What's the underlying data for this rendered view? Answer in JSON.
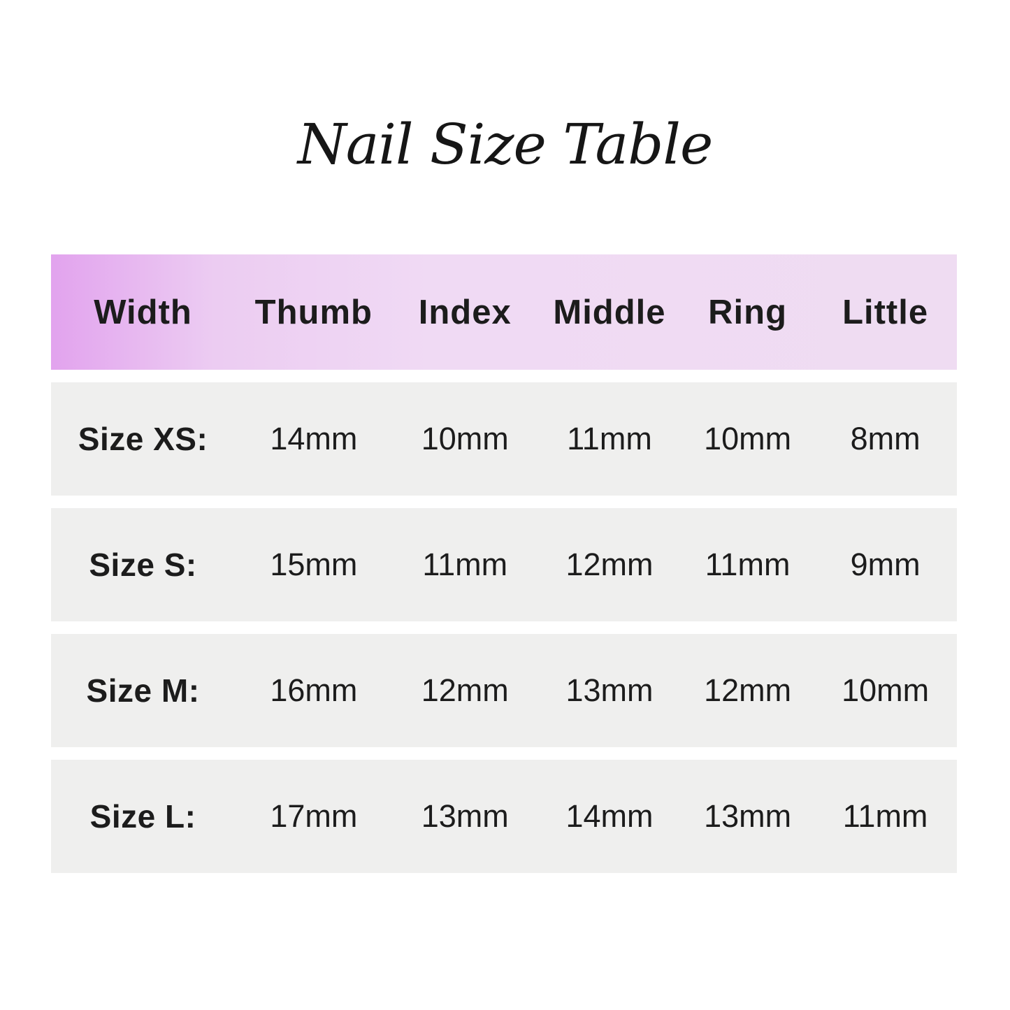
{
  "title": "Nail Size Table",
  "table": {
    "columns": [
      "Width",
      "Thumb",
      "Index",
      "Middle",
      "Ring",
      "Little"
    ],
    "rows": [
      {
        "label": "Size XS:",
        "values": [
          "14mm",
          "10mm",
          "11mm",
          "10mm",
          "8mm"
        ]
      },
      {
        "label": "Size S:",
        "values": [
          "15mm",
          "11mm",
          "12mm",
          "11mm",
          "9mm"
        ]
      },
      {
        "label": "Size M:",
        "values": [
          "16mm",
          "12mm",
          "13mm",
          "12mm",
          "10mm"
        ]
      },
      {
        "label": "Size L:",
        "values": [
          "17mm",
          "13mm",
          "14mm",
          "13mm",
          "11mm"
        ]
      }
    ]
  },
  "colors": {
    "background": "#ffffff",
    "header_gradient_start": "#e2a3ee",
    "header_gradient_end": "#efdcf2",
    "row_background": "#efefee",
    "text": "#1c1c1c"
  },
  "chart_data": {
    "type": "table",
    "title": "Nail Size Table",
    "columns": [
      "Width",
      "Thumb",
      "Index",
      "Middle",
      "Ring",
      "Little"
    ],
    "rows": [
      [
        "Size XS:",
        "14mm",
        "10mm",
        "11mm",
        "10mm",
        "8mm"
      ],
      [
        "Size S:",
        "15mm",
        "11mm",
        "12mm",
        "11mm",
        "9mm"
      ],
      [
        "Size M:",
        "16mm",
        "12mm",
        "13mm",
        "12mm",
        "10mm"
      ],
      [
        "Size L:",
        "17mm",
        "13mm",
        "14mm",
        "13mm",
        "11mm"
      ]
    ],
    "units": "mm",
    "layout": "header row with lavender gradient, alternating light-gray data bands separated by white gaps"
  }
}
